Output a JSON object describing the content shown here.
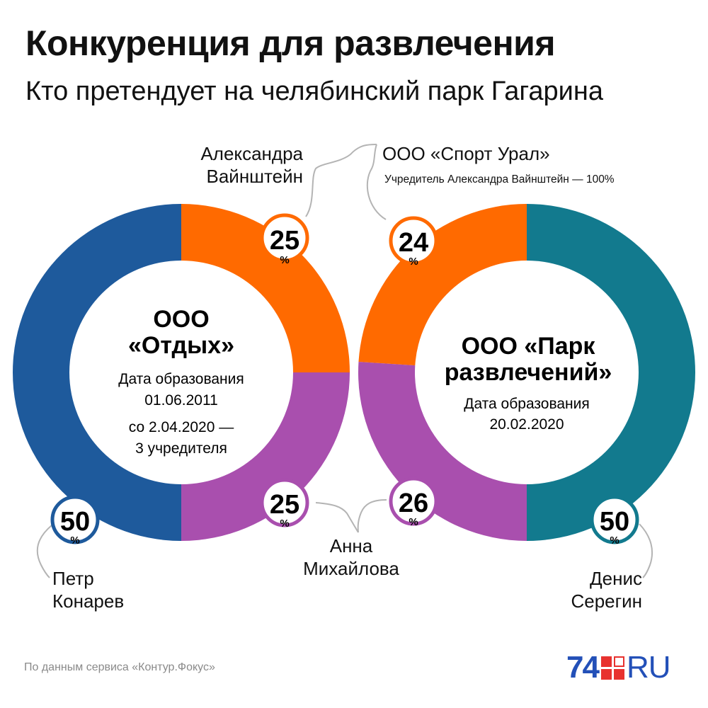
{
  "header": {
    "title": "Конкуренция для развлечения",
    "subtitle": "Кто претендует на челябинский парк Гагарина"
  },
  "chart_data": [
    {
      "type": "pie",
      "company": [
        "ООО",
        "«Отдых»"
      ],
      "details": [
        "Дата образования",
        "01.06.2011",
        "со 2.04.2020 —",
        "3 учредителя"
      ],
      "slices": [
        {
          "owner": [
            "Петр",
            "Конарев"
          ],
          "value": 50,
          "label": "50",
          "color": "#1e5a9c"
        },
        {
          "owner": [
            "Александра",
            "Вайнштейн"
          ],
          "value": 25,
          "label": "25",
          "color": "#ff6a00"
        },
        {
          "owner": [
            "Анна",
            "Михайлова"
          ],
          "value": 25,
          "label": "25",
          "color": "#a94fae"
        }
      ]
    },
    {
      "type": "pie",
      "company": [
        "ООО «Парк",
        "развлечений»"
      ],
      "details": [
        "Дата образования",
        "20.02.2020"
      ],
      "slices": [
        {
          "owner": [
            "ООО «Спорт Урал»",
            "Учредитель Александра Вайнштейн — 100%"
          ],
          "value": 24,
          "label": "24",
          "color": "#ff6a00"
        },
        {
          "owner": [
            "Денис",
            "Серегин"
          ],
          "value": 50,
          "label": "50",
          "color": "#127a8e"
        },
        {
          "owner": [
            "Анна",
            "Михайлова"
          ],
          "value": 26,
          "label": "26",
          "color": "#a94fae"
        }
      ]
    }
  ],
  "percent_sign": "%",
  "footer": {
    "source": "По данным сервиса «Контур.Фокус»",
    "logo_number": "74",
    "logo_suffix": "RU"
  }
}
